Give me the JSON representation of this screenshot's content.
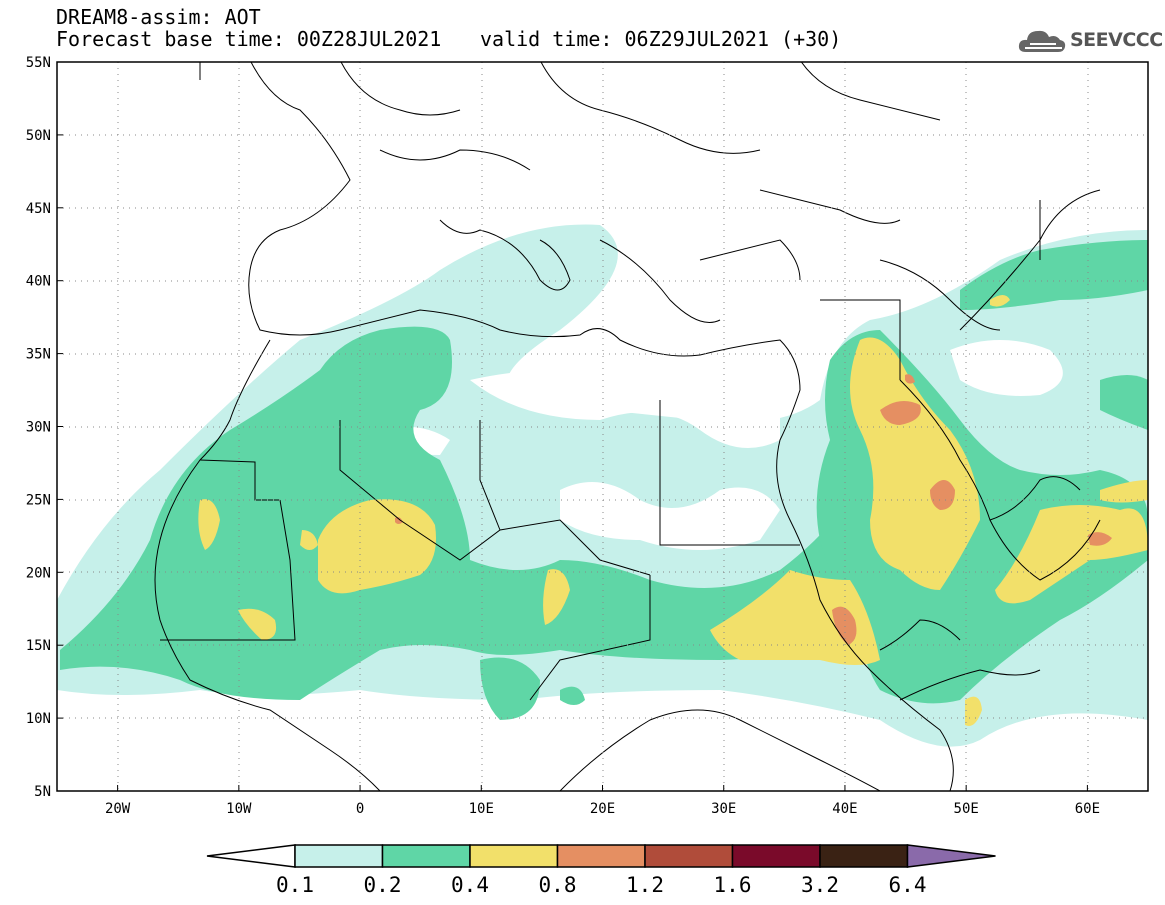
{
  "header": {
    "title": "DREAM8-assim: AOT",
    "base_time": "Forecast base time: 00Z28JUL2021",
    "valid_time": "valid time: 06Z29JUL2021 (+30)",
    "logo_text": "SEEVCCC",
    "logo_icon": "cloud-icon"
  },
  "axes": {
    "lat_labels": [
      "55N",
      "50N",
      "45N",
      "40N",
      "35N",
      "30N",
      "25N",
      "20N",
      "15N",
      "10N",
      "5N"
    ],
    "lon_labels": [
      "20W",
      "10W",
      "0",
      "10E",
      "20E",
      "30E",
      "40E",
      "50E",
      "60E"
    ],
    "lon_range": [
      -25,
      65
    ],
    "lat_range": [
      5,
      55
    ]
  },
  "colorbar": {
    "labels": [
      "0.1",
      "0.2",
      "0.4",
      "0.8",
      "1.2",
      "1.6",
      "3.2",
      "6.4"
    ],
    "colors": [
      "#c6f0ea",
      "#5fd6a6",
      "#f2e06a",
      "#e58f62",
      "#b04c3a",
      "#7a0a2a",
      "#3a2214",
      "#8a6aaa"
    ],
    "below_color": "#ffffff"
  }
}
